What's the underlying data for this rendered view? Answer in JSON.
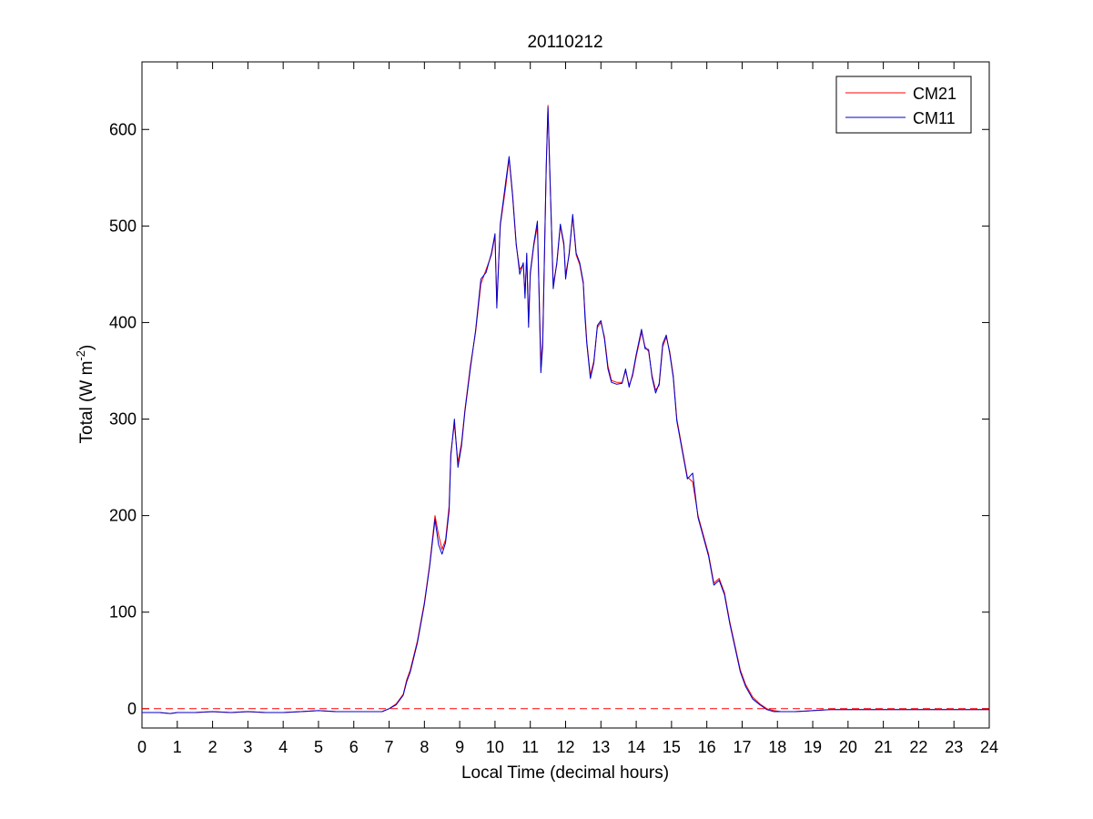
{
  "chart_data": {
    "type": "line",
    "title": "20110212",
    "xlabel": "Local Time (decimal hours)",
    "ylabel": {
      "prefix": "Total (W m",
      "superscript": "-2",
      "suffix": ")"
    },
    "xlim": [
      0,
      24
    ],
    "ylim": [
      -20,
      670
    ],
    "xticks": [
      0,
      1,
      2,
      3,
      4,
      5,
      6,
      7,
      8,
      9,
      10,
      11,
      12,
      13,
      14,
      15,
      16,
      17,
      18,
      19,
      20,
      21,
      22,
      23,
      24
    ],
    "yticks": [
      0,
      100,
      200,
      300,
      400,
      500,
      600
    ],
    "grid": false,
    "legend": "top-right",
    "reference_line": {
      "y": 0,
      "color": "#ff0000",
      "style": "dashed"
    },
    "series": [
      {
        "name": "CM21",
        "color": "#ff0000",
        "points": [
          [
            0,
            -4
          ],
          [
            0.5,
            -4
          ],
          [
            0.8,
            -5
          ],
          [
            1,
            -4
          ],
          [
            1.5,
            -4
          ],
          [
            2,
            -3
          ],
          [
            2.5,
            -4
          ],
          [
            3,
            -3
          ],
          [
            3.5,
            -4
          ],
          [
            4,
            -4
          ],
          [
            4.5,
            -3
          ],
          [
            5,
            -2
          ],
          [
            5.5,
            -3
          ],
          [
            6,
            -3
          ],
          [
            6.5,
            -3
          ],
          [
            6.8,
            -3
          ],
          [
            7,
            0
          ],
          [
            7.2,
            5
          ],
          [
            7.4,
            15
          ],
          [
            7.5,
            30
          ],
          [
            7.6,
            40
          ],
          [
            7.8,
            70
          ],
          [
            8,
            110
          ],
          [
            8.15,
            150
          ],
          [
            8.3,
            200
          ],
          [
            8.4,
            180
          ],
          [
            8.5,
            165
          ],
          [
            8.6,
            175
          ],
          [
            8.7,
            210
          ],
          [
            8.75,
            265
          ],
          [
            8.85,
            295
          ],
          [
            8.95,
            255
          ],
          [
            9.05,
            275
          ],
          [
            9.15,
            310
          ],
          [
            9.3,
            355
          ],
          [
            9.45,
            390
          ],
          [
            9.6,
            440
          ],
          [
            9.75,
            455
          ],
          [
            9.9,
            470
          ],
          [
            10,
            490
          ],
          [
            10.05,
            420
          ],
          [
            10.15,
            500
          ],
          [
            10.3,
            540
          ],
          [
            10.4,
            570
          ],
          [
            10.5,
            530
          ],
          [
            10.6,
            480
          ],
          [
            10.7,
            455
          ],
          [
            10.8,
            460
          ],
          [
            10.85,
            430
          ],
          [
            10.9,
            470
          ],
          [
            10.95,
            400
          ],
          [
            11,
            450
          ],
          [
            11.1,
            480
          ],
          [
            11.2,
            500
          ],
          [
            11.3,
            360
          ],
          [
            11.35,
            380
          ],
          [
            11.45,
            560
          ],
          [
            11.5,
            625
          ],
          [
            11.55,
            560
          ],
          [
            11.65,
            440
          ],
          [
            11.75,
            460
          ],
          [
            11.85,
            500
          ],
          [
            11.95,
            480
          ],
          [
            12,
            450
          ],
          [
            12.1,
            470
          ],
          [
            12.2,
            510
          ],
          [
            12.3,
            470
          ],
          [
            12.4,
            460
          ],
          [
            12.5,
            440
          ],
          [
            12.55,
            410
          ],
          [
            12.6,
            380
          ],
          [
            12.7,
            345
          ],
          [
            12.8,
            360
          ],
          [
            12.9,
            395
          ],
          [
            13,
            400
          ],
          [
            13.1,
            385
          ],
          [
            13.2,
            355
          ],
          [
            13.3,
            340
          ],
          [
            13.45,
            338
          ],
          [
            13.6,
            338
          ],
          [
            13.7,
            350
          ],
          [
            13.8,
            335
          ],
          [
            13.9,
            345
          ],
          [
            14,
            365
          ],
          [
            14.15,
            390
          ],
          [
            14.25,
            375
          ],
          [
            14.35,
            370
          ],
          [
            14.45,
            345
          ],
          [
            14.55,
            330
          ],
          [
            14.65,
            335
          ],
          [
            14.75,
            375
          ],
          [
            14.85,
            385
          ],
          [
            14.95,
            370
          ],
          [
            15.05,
            345
          ],
          [
            15.15,
            300
          ],
          [
            15.3,
            270
          ],
          [
            15.45,
            240
          ],
          [
            15.6,
            235
          ],
          [
            15.75,
            200
          ],
          [
            15.9,
            180
          ],
          [
            16.05,
            160
          ],
          [
            16.2,
            130
          ],
          [
            16.35,
            135
          ],
          [
            16.5,
            120
          ],
          [
            16.65,
            90
          ],
          [
            16.8,
            65
          ],
          [
            16.95,
            40
          ],
          [
            17.1,
            25
          ],
          [
            17.3,
            12
          ],
          [
            17.5,
            5
          ],
          [
            17.7,
            0
          ],
          [
            17.9,
            -2
          ],
          [
            18.1,
            -3
          ],
          [
            18.5,
            -3
          ],
          [
            19,
            -2
          ],
          [
            19.5,
            -1
          ],
          [
            20,
            -1
          ],
          [
            21,
            -1
          ],
          [
            22,
            -1
          ],
          [
            23,
            -1
          ],
          [
            24,
            -1
          ]
        ]
      },
      {
        "name": "CM11",
        "color": "#0000cc",
        "points": [
          [
            0,
            -4
          ],
          [
            0.5,
            -4
          ],
          [
            0.8,
            -5
          ],
          [
            1,
            -4
          ],
          [
            1.5,
            -4
          ],
          [
            2,
            -3
          ],
          [
            2.5,
            -4
          ],
          [
            3,
            -3
          ],
          [
            3.5,
            -4
          ],
          [
            4,
            -4
          ],
          [
            4.5,
            -3
          ],
          [
            5,
            -2
          ],
          [
            5.5,
            -3
          ],
          [
            6,
            -3
          ],
          [
            6.5,
            -3
          ],
          [
            6.8,
            -3
          ],
          [
            7,
            0
          ],
          [
            7.2,
            4
          ],
          [
            7.4,
            14
          ],
          [
            7.5,
            28
          ],
          [
            7.6,
            38
          ],
          [
            7.8,
            68
          ],
          [
            8,
            108
          ],
          [
            8.15,
            148
          ],
          [
            8.3,
            196
          ],
          [
            8.4,
            170
          ],
          [
            8.5,
            160
          ],
          [
            8.6,
            172
          ],
          [
            8.7,
            205
          ],
          [
            8.75,
            262
          ],
          [
            8.85,
            300
          ],
          [
            8.95,
            250
          ],
          [
            9.05,
            272
          ],
          [
            9.15,
            308
          ],
          [
            9.3,
            352
          ],
          [
            9.45,
            392
          ],
          [
            9.6,
            445
          ],
          [
            9.75,
            452
          ],
          [
            9.9,
            472
          ],
          [
            10,
            492
          ],
          [
            10.05,
            415
          ],
          [
            10.15,
            502
          ],
          [
            10.3,
            545
          ],
          [
            10.4,
            572
          ],
          [
            10.5,
            532
          ],
          [
            10.6,
            482
          ],
          [
            10.7,
            450
          ],
          [
            10.8,
            462
          ],
          [
            10.85,
            425
          ],
          [
            10.9,
            472
          ],
          [
            10.95,
            395
          ],
          [
            11,
            452
          ],
          [
            11.1,
            482
          ],
          [
            11.2,
            505
          ],
          [
            11.3,
            348
          ],
          [
            11.35,
            375
          ],
          [
            11.45,
            562
          ],
          [
            11.5,
            623
          ],
          [
            11.55,
            562
          ],
          [
            11.65,
            435
          ],
          [
            11.75,
            462
          ],
          [
            11.85,
            502
          ],
          [
            11.95,
            482
          ],
          [
            12,
            445
          ],
          [
            12.1,
            472
          ],
          [
            12.2,
            512
          ],
          [
            12.3,
            472
          ],
          [
            12.4,
            462
          ],
          [
            12.5,
            442
          ],
          [
            12.55,
            405
          ],
          [
            12.6,
            378
          ],
          [
            12.7,
            342
          ],
          [
            12.8,
            358
          ],
          [
            12.9,
            397
          ],
          [
            13,
            402
          ],
          [
            13.1,
            383
          ],
          [
            13.2,
            352
          ],
          [
            13.3,
            338
          ],
          [
            13.45,
            336
          ],
          [
            13.6,
            337
          ],
          [
            13.7,
            352
          ],
          [
            13.8,
            333
          ],
          [
            13.9,
            347
          ],
          [
            14,
            367
          ],
          [
            14.15,
            393
          ],
          [
            14.25,
            373
          ],
          [
            14.35,
            372
          ],
          [
            14.45,
            343
          ],
          [
            14.55,
            327
          ],
          [
            14.65,
            337
          ],
          [
            14.75,
            378
          ],
          [
            14.85,
            387
          ],
          [
            14.95,
            368
          ],
          [
            15.05,
            343
          ],
          [
            15.15,
            298
          ],
          [
            15.3,
            268
          ],
          [
            15.45,
            238
          ],
          [
            15.6,
            244
          ],
          [
            15.75,
            198
          ],
          [
            15.9,
            178
          ],
          [
            16.05,
            158
          ],
          [
            16.2,
            128
          ],
          [
            16.35,
            133
          ],
          [
            16.5,
            118
          ],
          [
            16.65,
            88
          ],
          [
            16.8,
            63
          ],
          [
            16.95,
            38
          ],
          [
            17.1,
            23
          ],
          [
            17.3,
            10
          ],
          [
            17.5,
            4
          ],
          [
            17.7,
            -1
          ],
          [
            17.9,
            -3
          ],
          [
            18.1,
            -3
          ],
          [
            18.5,
            -3
          ],
          [
            19,
            -2
          ],
          [
            19.5,
            -1
          ],
          [
            20,
            -1
          ],
          [
            21,
            -1
          ],
          [
            22,
            -1
          ],
          [
            23,
            -1
          ],
          [
            24,
            -1
          ]
        ]
      }
    ]
  }
}
